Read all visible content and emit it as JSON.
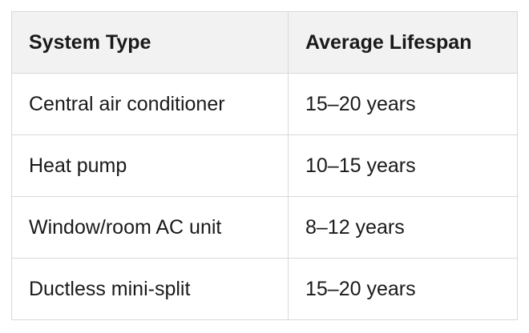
{
  "table": {
    "header": [
      "System Type",
      "Average Lifespan"
    ],
    "rows": [
      [
        "Central air conditioner",
        "15–20 years"
      ],
      [
        "Heat pump",
        "10–15 years"
      ],
      [
        "Window/room AC unit",
        "8–12 years"
      ],
      [
        "Ductless mini-split",
        "15–20 years"
      ]
    ]
  }
}
